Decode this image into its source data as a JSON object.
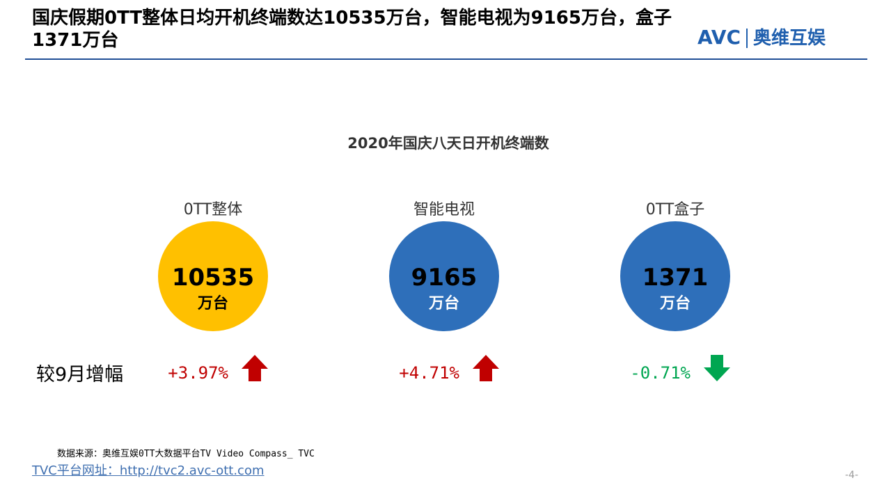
{
  "header": {
    "title": "国庆假期0TT整体日均开机终端数达10535万台，智能电视为9165万台，盒子1371万台",
    "logo_mark": "AVC",
    "logo_brand": "奥维互娱"
  },
  "subtitle": "2020年国庆八天日开机终端数",
  "row_label": "较9月增幅",
  "items": [
    {
      "name": "0TT整体",
      "value": "10535",
      "unit": "万台",
      "change": "+3.97%",
      "direction": "up",
      "circle_color": "#ffc000",
      "change_color": "#c00000"
    },
    {
      "name": "智能电视",
      "value": "9165",
      "unit": "万台",
      "change": "+4.71%",
      "direction": "up",
      "circle_color": "#2e6fba",
      "change_color": "#c00000"
    },
    {
      "name": "0TT盒子",
      "value": "1371",
      "unit": "万台",
      "change": "-0.71%",
      "direction": "down",
      "circle_color": "#2e6fba",
      "change_color": "#00a651"
    }
  ],
  "source": "数据来源：奥维互娱0TT大数据平台TV Video Compass_ TVC",
  "website": "TVC平台网址：http://tvc2.avc-ott.com",
  "page_number": "-4-"
}
